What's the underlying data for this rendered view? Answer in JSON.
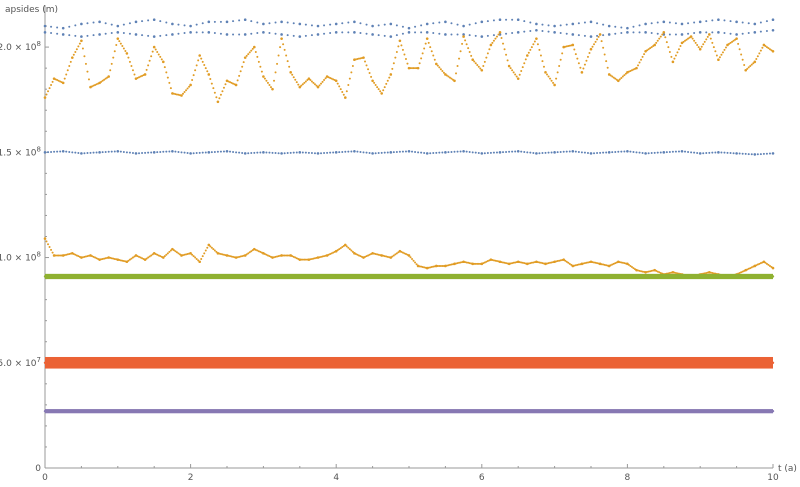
{
  "chart_data": {
    "type": "scatter",
    "title": "",
    "xlabel": "t (a)",
    "ylabel": "apsides (m)",
    "xlim": [
      0,
      10
    ],
    "ylim": [
      0,
      220000000
    ],
    "x_ticks": [
      {
        "value": 0,
        "label": "0"
      },
      {
        "value": 2,
        "label": "2"
      },
      {
        "value": 4,
        "label": "4"
      },
      {
        "value": 6,
        "label": "6"
      },
      {
        "value": 8,
        "label": "8"
      },
      {
        "value": 10,
        "label": "10"
      }
    ],
    "y_ticks": [
      {
        "value": 0,
        "label": "0",
        "exp": ""
      },
      {
        "value": 50000000,
        "label": "5.0 × 10",
        "exp": "7"
      },
      {
        "value": 100000000,
        "label": "1.0 × 10",
        "exp": "8"
      },
      {
        "value": 150000000,
        "label": "1.5 × 10",
        "exp": "8"
      },
      {
        "value": 200000000,
        "label": "2.0 × 10",
        "exp": "8"
      }
    ],
    "grid": false,
    "legend": "none",
    "series": [
      {
        "color": "#5e81b5",
        "style": "sparse",
        "x": [
          0,
          0.25,
          0.5,
          0.75,
          1,
          1.25,
          1.5,
          1.75,
          2,
          2.25,
          2.5,
          2.75,
          3,
          3.25,
          3.5,
          3.75,
          4,
          4.25,
          4.5,
          4.75,
          5,
          5.25,
          5.5,
          5.75,
          6,
          6.25,
          6.5,
          6.75,
          7,
          7.25,
          7.5,
          7.75,
          8,
          8.25,
          8.5,
          8.75,
          9,
          9.25,
          9.5,
          9.75,
          10
        ],
        "y": [
          210000000,
          209000000,
          211000000,
          212000000,
          210000000,
          212000000,
          213000000,
          211000000,
          210000000,
          212000000,
          212000000,
          213000000,
          211000000,
          212000000,
          211000000,
          210000000,
          211000000,
          212000000,
          210000000,
          211000000,
          209000000,
          211000000,
          212000000,
          210000000,
          212000000,
          213000000,
          213000000,
          211000000,
          210000000,
          211000000,
          212000000,
          210000000,
          209000000,
          211000000,
          212000000,
          211000000,
          212000000,
          213000000,
          212000000,
          211000000,
          213000000
        ]
      },
      {
        "color": "#5e81b5",
        "style": "sparse",
        "x": [
          0,
          0.25,
          0.5,
          0.75,
          1,
          1.25,
          1.5,
          1.75,
          2,
          2.25,
          2.5,
          2.75,
          3,
          3.25,
          3.5,
          3.75,
          4,
          4.25,
          4.5,
          4.75,
          5,
          5.25,
          5.5,
          5.75,
          6,
          6.25,
          6.5,
          6.75,
          7,
          7.25,
          7.5,
          7.75,
          8,
          8.25,
          8.5,
          8.75,
          9,
          9.25,
          9.5,
          9.75,
          10
        ],
        "y": [
          207000000,
          206000000,
          205000000,
          206000000,
          207000000,
          206000000,
          205000000,
          206000000,
          207000000,
          207000000,
          206000000,
          206000000,
          207000000,
          206000000,
          205000000,
          206000000,
          207000000,
          207000000,
          206000000,
          205000000,
          207000000,
          207000000,
          206000000,
          206000000,
          205000000,
          206000000,
          207000000,
          208000000,
          207000000,
          206000000,
          205000000,
          206000000,
          207000000,
          207000000,
          206000000,
          206000000,
          207000000,
          207000000,
          206000000,
          207000000,
          208000000
        ]
      },
      {
        "color": "#e19c24",
        "style": "dense",
        "x": [
          0,
          0.125,
          0.25,
          0.375,
          0.5,
          0.625,
          0.75,
          0.875,
          1,
          1.125,
          1.25,
          1.375,
          1.5,
          1.625,
          1.75,
          1.875,
          2,
          2.125,
          2.25,
          2.375,
          2.5,
          2.625,
          2.75,
          2.875,
          3,
          3.125,
          3.25,
          3.375,
          3.5,
          3.625,
          3.75,
          3.875,
          4,
          4.125,
          4.25,
          4.375,
          4.5,
          4.625,
          4.75,
          4.875,
          5,
          5.125,
          5.25,
          5.375,
          5.5,
          5.625,
          5.75,
          5.875,
          6,
          6.125,
          6.25,
          6.375,
          6.5,
          6.625,
          6.75,
          6.875,
          7,
          7.125,
          7.25,
          7.375,
          7.5,
          7.625,
          7.75,
          7.875,
          8,
          8.125,
          8.25,
          8.375,
          8.5,
          8.625,
          8.75,
          8.875,
          9,
          9.125,
          9.25,
          9.375,
          9.5,
          9.625,
          9.75,
          9.875,
          10
        ],
        "y": [
          176000000,
          185000000,
          183000000,
          195000000,
          203000000,
          181000000,
          183000000,
          186000000,
          204000000,
          197000000,
          185000000,
          187000000,
          200000000,
          193000000,
          178000000,
          177000000,
          182000000,
          196000000,
          187000000,
          174000000,
          184000000,
          182000000,
          195000000,
          200000000,
          186000000,
          180000000,
          204000000,
          188000000,
          181000000,
          185000000,
          181000000,
          186000000,
          184000000,
          176000000,
          194000000,
          195000000,
          184000000,
          178000000,
          187000000,
          203000000,
          190000000,
          190000000,
          204000000,
          192000000,
          187000000,
          184000000,
          205000000,
          194000000,
          189000000,
          201000000,
          207000000,
          191000000,
          185000000,
          196000000,
          204000000,
          188000000,
          182000000,
          200000000,
          201000000,
          188000000,
          199000000,
          206000000,
          187000000,
          184000000,
          188000000,
          190000000,
          198000000,
          201000000,
          207000000,
          193000000,
          202000000,
          205000000,
          199000000,
          206000000,
          194000000,
          201000000,
          204000000,
          189000000,
          193000000,
          201000000,
          198000000
        ]
      },
      {
        "color": "#5e81b5",
        "style": "dense",
        "x": [
          0,
          0.25,
          0.5,
          0.75,
          1,
          1.25,
          1.5,
          1.75,
          2,
          2.25,
          2.5,
          2.75,
          3,
          3.25,
          3.5,
          3.75,
          4,
          4.25,
          4.5,
          4.75,
          5,
          5.25,
          5.5,
          5.75,
          6,
          6.25,
          6.5,
          6.75,
          7,
          7.25,
          7.5,
          7.75,
          8,
          8.25,
          8.5,
          8.75,
          9,
          9.25,
          9.5,
          9.75,
          10
        ],
        "y": [
          150000000,
          150500000,
          149500000,
          150000000,
          150500000,
          149500000,
          150000000,
          150500000,
          149500000,
          150000000,
          150500000,
          149500000,
          150000000,
          149500000,
          150000000,
          149500000,
          150000000,
          150500000,
          149500000,
          150000000,
          150500000,
          149500000,
          150000000,
          150500000,
          149500000,
          150000000,
          150500000,
          149500000,
          150000000,
          150500000,
          149500000,
          150000000,
          150500000,
          149500000,
          150000000,
          150500000,
          149500000,
          150000000,
          149500000,
          149000000,
          149500000
        ]
      },
      {
        "color": "#e19c24",
        "style": "dense",
        "x": [
          0,
          0.125,
          0.25,
          0.375,
          0.5,
          0.625,
          0.75,
          0.875,
          1,
          1.125,
          1.25,
          1.375,
          1.5,
          1.625,
          1.75,
          1.875,
          2,
          2.125,
          2.25,
          2.375,
          2.5,
          2.625,
          2.75,
          2.875,
          3,
          3.125,
          3.25,
          3.375,
          3.5,
          3.625,
          3.75,
          3.875,
          4,
          4.125,
          4.25,
          4.375,
          4.5,
          4.625,
          4.75,
          4.875,
          5,
          5.125,
          5.25,
          5.375,
          5.5,
          5.625,
          5.75,
          5.875,
          6,
          6.125,
          6.25,
          6.375,
          6.5,
          6.625,
          6.75,
          6.875,
          7,
          7.125,
          7.25,
          7.375,
          7.5,
          7.625,
          7.75,
          7.875,
          8,
          8.125,
          8.25,
          8.375,
          8.5,
          8.625,
          8.75,
          8.875,
          9,
          9.125,
          9.25,
          9.375,
          9.5,
          9.625,
          9.75,
          9.875,
          10
        ],
        "y": [
          109000000,
          101000000,
          101000000,
          102000000,
          100000000,
          101000000,
          99000000,
          100000000,
          99000000,
          98000000,
          101000000,
          99000000,
          102000000,
          100000000,
          104000000,
          101000000,
          102000000,
          98000000,
          106000000,
          102000000,
          101000000,
          100000000,
          101000000,
          104000000,
          102000000,
          100000000,
          101000000,
          101000000,
          99000000,
          99000000,
          100000000,
          101000000,
          103000000,
          106000000,
          102000000,
          100000000,
          102000000,
          101000000,
          100000000,
          103000000,
          101000000,
          96000000,
          95000000,
          96000000,
          96000000,
          97000000,
          98000000,
          97000000,
          97000000,
          99000000,
          98000000,
          97000000,
          98000000,
          97000000,
          98000000,
          97000000,
          98000000,
          99000000,
          96000000,
          97000000,
          98000000,
          97000000,
          96000000,
          98000000,
          97000000,
          94000000,
          93000000,
          94000000,
          92000000,
          93000000,
          92000000,
          91000000,
          92000000,
          93000000,
          92000000,
          91000000,
          92000000,
          94000000,
          96000000,
          98000000,
          95000000
        ]
      },
      {
        "color": "#8fb131",
        "style": "band",
        "band_width": 2500000,
        "x": [
          0,
          1,
          2,
          3,
          4,
          5,
          6,
          7,
          8,
          9,
          10
        ],
        "y": [
          91000000,
          91000000,
          91000000,
          91000000,
          91000000,
          91000000,
          91000000,
          91000000,
          91000000,
          91000000,
          91000000
        ]
      },
      {
        "color": "#eb6235",
        "style": "band",
        "band_width": 5500000,
        "x": [
          0,
          1,
          2,
          3,
          4,
          5,
          6,
          7,
          8,
          9,
          10
        ],
        "y": [
          50000000,
          50000000,
          50000000,
          50000000,
          50000000,
          50000000,
          50000000,
          50000000,
          50000000,
          50000000,
          50000000
        ]
      },
      {
        "color": "#8778b3",
        "style": "band",
        "band_width": 2000000,
        "x": [
          0,
          1,
          2,
          3,
          4,
          5,
          6,
          7,
          8,
          9,
          10
        ],
        "y": [
          27000000,
          27000000,
          27000000,
          27000000,
          27000000,
          27000000,
          27000000,
          27000000,
          27000000,
          27000000,
          27000000
        ]
      }
    ]
  }
}
